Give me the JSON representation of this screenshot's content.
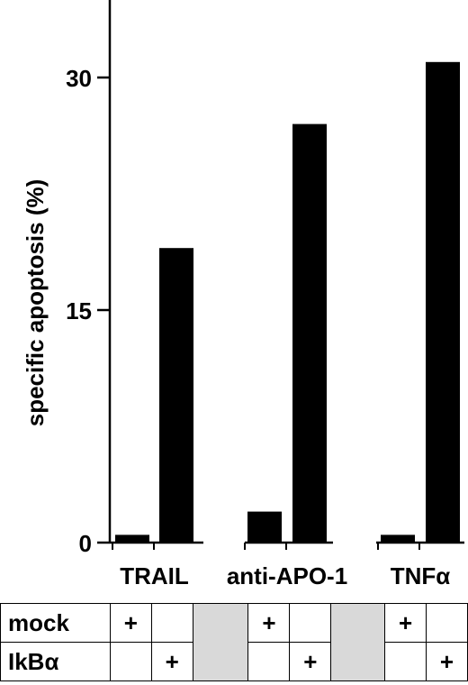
{
  "chart_data": {
    "type": "bar",
    "title": "",
    "xlabel": "",
    "ylabel": "specific apoptosis (%)",
    "ylim": [
      0,
      30
    ],
    "yticks": [
      0,
      15,
      30
    ],
    "categories": [
      "TRAIL",
      "anti-APO-1",
      "TNFα"
    ],
    "series": [
      {
        "name": "mock",
        "values": [
          0.5,
          2.0,
          0.5
        ]
      },
      {
        "name": "IkBα",
        "values": [
          19.0,
          27.0,
          31.0
        ]
      }
    ],
    "grid": false,
    "legend": "none",
    "bar_color": "#000000"
  },
  "condition_table": {
    "rows": [
      {
        "label": "mock",
        "marks": [
          "+",
          "",
          "+",
          "",
          "+",
          ""
        ]
      },
      {
        "label": "IkBα",
        "marks": [
          "",
          "+",
          "",
          "+",
          "",
          "+"
        ]
      }
    ],
    "spacer_color": "#d9d9d9"
  }
}
